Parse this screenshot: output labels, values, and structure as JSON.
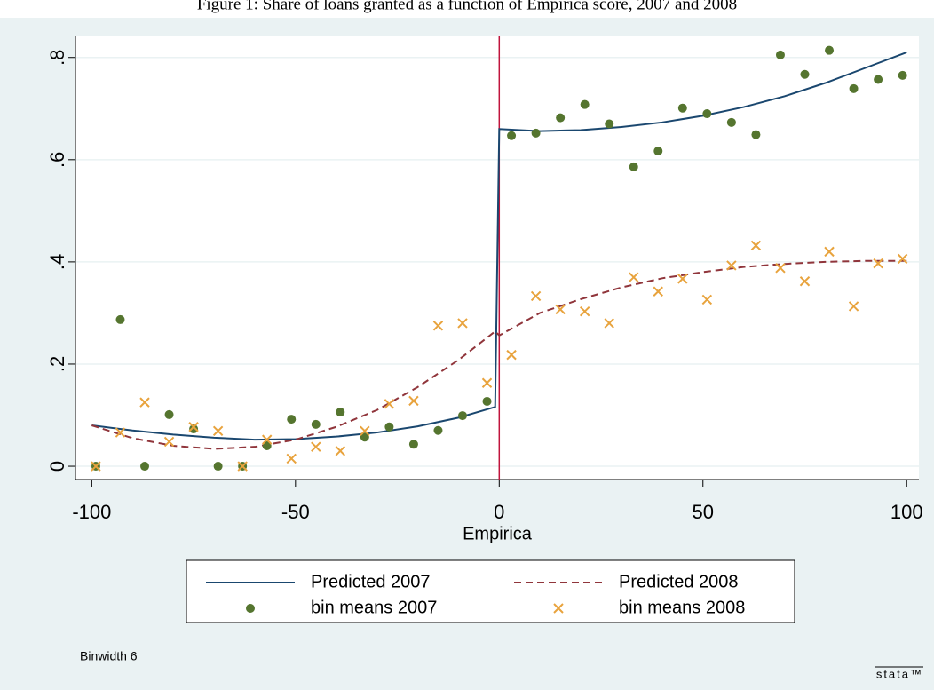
{
  "chart_data": {
    "type": "line",
    "title": "Figure 1: Share of loans granted as a function of Empirica score, 2007 and 2008",
    "xlabel": "Empirica",
    "note": "Binwidth 6",
    "logo": "stata™",
    "xlim": [
      -104,
      103
    ],
    "ylim": [
      -0.026,
      0.843
    ],
    "xticks": [
      -100,
      -50,
      0,
      50,
      100
    ],
    "yticks": [
      0,
      {
        "value": 0.2,
        "label": ".2"
      },
      {
        "value": 0.4,
        "label": ".4"
      },
      {
        "value": 0.6,
        "label": ".6"
      },
      {
        "value": 0.8,
        "label": ".8"
      }
    ],
    "grid": true,
    "vline": {
      "x": 0,
      "color": "#c0143c"
    },
    "series": [
      {
        "name": "Predicted 2007",
        "style": "solid",
        "color": "#1a476f",
        "x": [
          -100,
          -90,
          -80,
          -70,
          -60,
          -50,
          -40,
          -30,
          -20,
          -10,
          -1,
          0,
          10,
          20,
          30,
          40,
          50,
          60,
          70,
          80,
          90,
          100
        ],
        "values": [
          0.08,
          0.07,
          0.062,
          0.056,
          0.052,
          0.053,
          0.058,
          0.066,
          0.078,
          0.095,
          0.116,
          0.66,
          0.656,
          0.658,
          0.664,
          0.673,
          0.686,
          0.703,
          0.724,
          0.75,
          0.78,
          0.81
        ]
      },
      {
        "name": "Predicted 2008",
        "style": "dashed",
        "color": "#90353b",
        "x": [
          -100,
          -90,
          -80,
          -70,
          -60,
          -50,
          -40,
          -30,
          -20,
          -10,
          -1,
          0,
          10,
          20,
          30,
          40,
          50,
          60,
          70,
          80,
          90,
          100
        ],
        "values": [
          0.08,
          0.055,
          0.04,
          0.034,
          0.038,
          0.052,
          0.077,
          0.11,
          0.155,
          0.208,
          0.264,
          0.256,
          0.3,
          0.327,
          0.35,
          0.368,
          0.38,
          0.39,
          0.396,
          0.4,
          0.402,
          0.402
        ]
      },
      {
        "name": "bin means 2007",
        "style": "dot",
        "color": "#55752f",
        "x": [
          -99,
          -93,
          -87,
          -81,
          -75,
          -69,
          -63,
          -57,
          -51,
          -45,
          -39,
          -33,
          -27,
          -21,
          -15,
          -9,
          -3,
          3,
          9,
          15,
          21,
          27,
          33,
          39,
          45,
          51,
          57,
          63,
          69,
          75,
          81,
          87,
          93,
          99
        ],
        "values": [
          0,
          0.287,
          0,
          0.101,
          0.073,
          0,
          0,
          0.04,
          0.092,
          0.082,
          0.106,
          0.057,
          0.077,
          0.043,
          0.07,
          0.099,
          0.127,
          0.647,
          0.652,
          0.682,
          0.708,
          0.67,
          0.586,
          0.617,
          0.701,
          0.69,
          0.673,
          0.649,
          0.805,
          0.767,
          0.814,
          0.739,
          0.757,
          0.765
        ]
      },
      {
        "name": "bin means 2008",
        "style": "cross",
        "color": "#e8a33d",
        "x": [
          -99,
          -93,
          -87,
          -81,
          -75,
          -69,
          -63,
          -57,
          -51,
          -45,
          -39,
          -33,
          -27,
          -21,
          -15,
          -9,
          -3,
          3,
          9,
          15,
          21,
          27,
          33,
          39,
          45,
          51,
          57,
          63,
          69,
          75,
          81,
          87,
          93,
          99
        ],
        "values": [
          0,
          0.066,
          0.125,
          0.048,
          0.077,
          0.069,
          0,
          0.052,
          0.015,
          0.038,
          0.03,
          0.069,
          0.122,
          0.128,
          0.275,
          0.28,
          0.163,
          0.218,
          0.333,
          0.307,
          0.303,
          0.28,
          0.37,
          0.342,
          0.367,
          0.326,
          0.393,
          0.432,
          0.388,
          0.362,
          0.42,
          0.313,
          0.397,
          0.406
        ]
      }
    ]
  }
}
